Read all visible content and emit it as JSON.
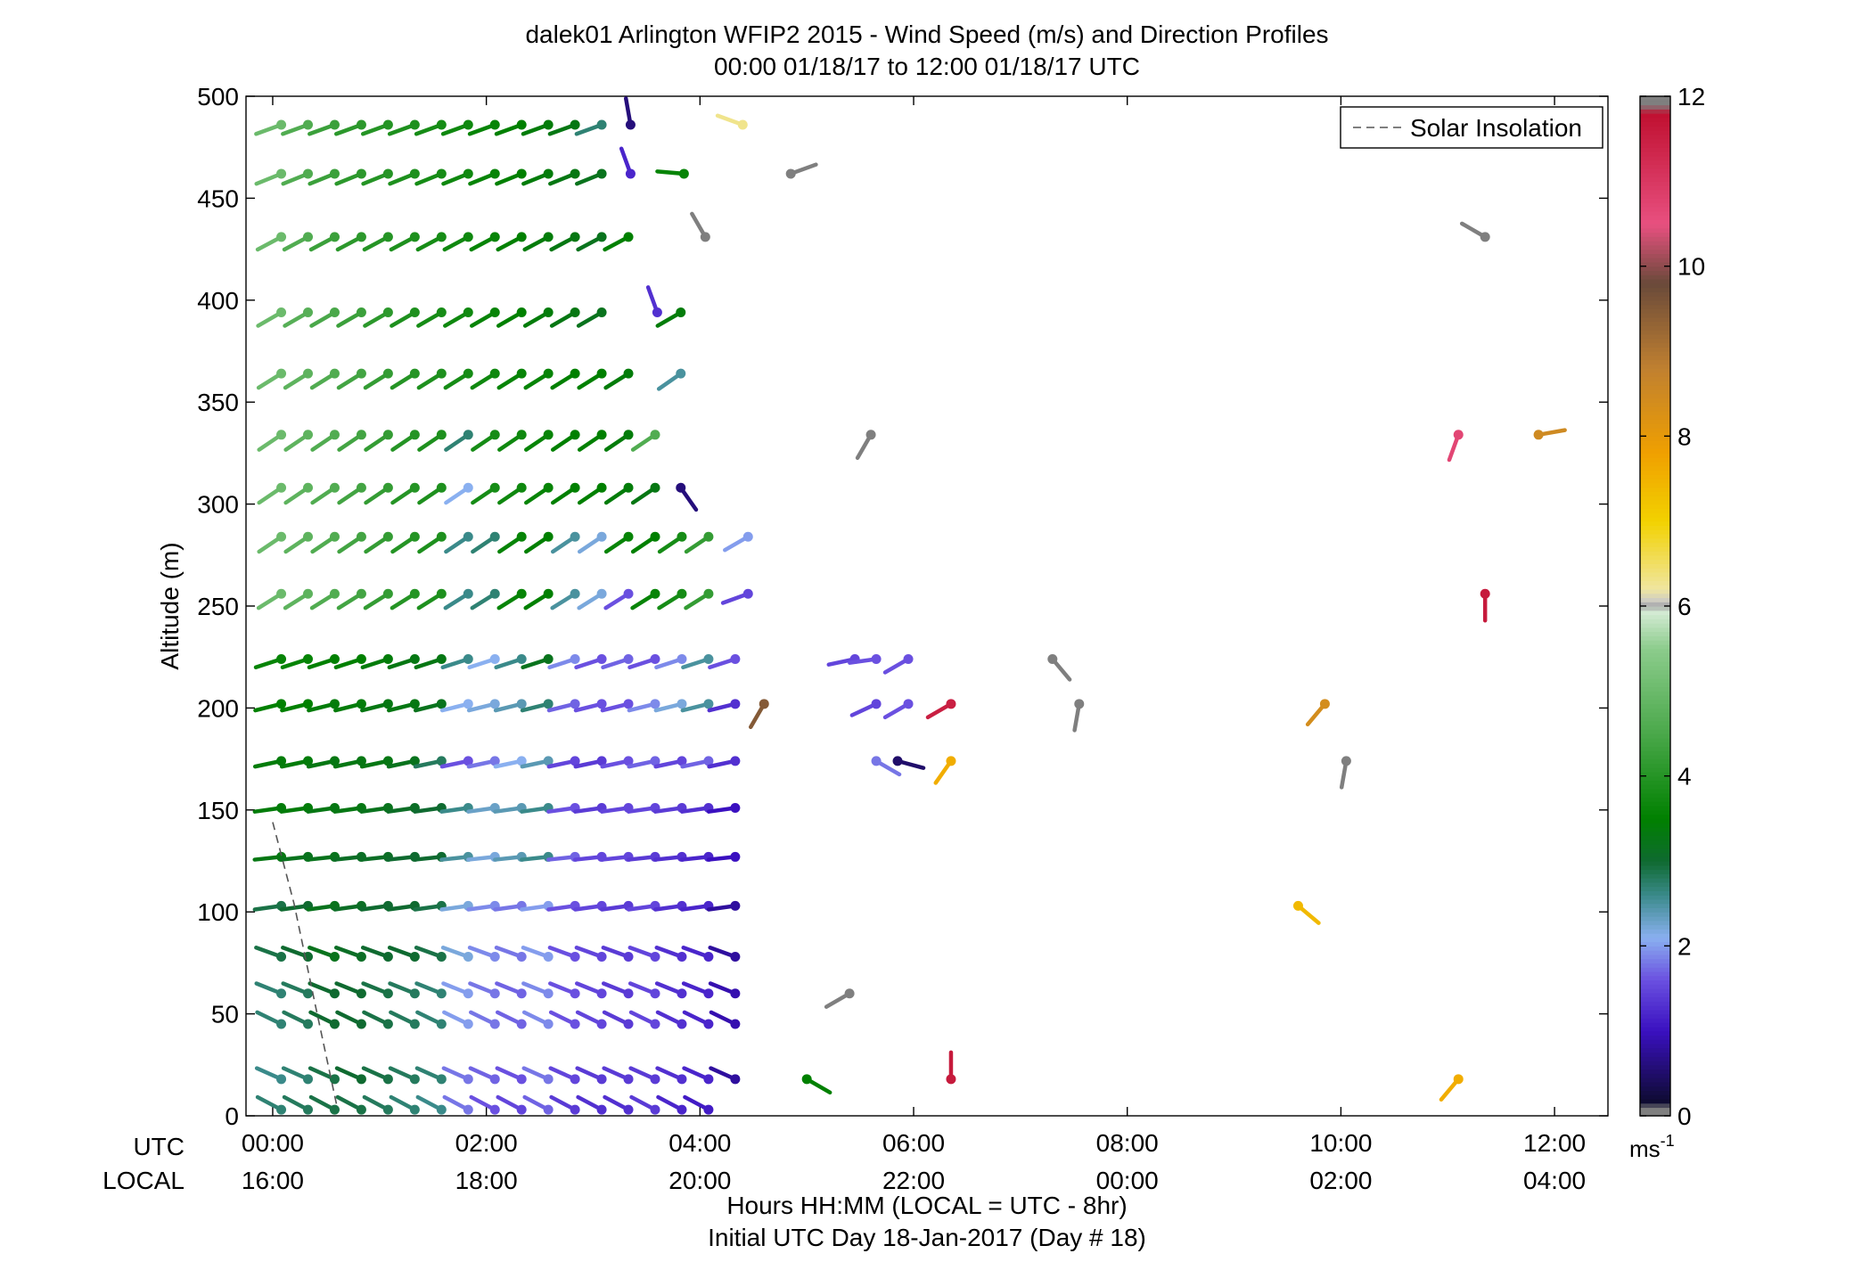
{
  "chart_data": {
    "type": "scatter",
    "title_line1": "dalek01 Arlington WFIP2 2015 - Wind Speed (m/s) and Direction Profiles",
    "title_line2": "00:00 01/18/17 to 12:00 01/18/17  UTC",
    "ylabel": "Altitude (m)",
    "xlabel_line1": "Hours HH:MM  (LOCAL = UTC - 8hr)",
    "xlabel_line2": "Initial UTC Day 18-Jan-2017 (Day # 18)",
    "row_label_utc": "UTC",
    "row_label_local": "LOCAL",
    "xlim": [
      -0.25,
      12.5
    ],
    "ylim": [
      0,
      500
    ],
    "x_ticks_utc": [
      "00:00",
      "02:00",
      "04:00",
      "06:00",
      "08:00",
      "10:00",
      "12:00"
    ],
    "x_ticks_local": [
      "16:00",
      "18:00",
      "20:00",
      "22:00",
      "00:00",
      "02:00",
      "04:00"
    ],
    "x_tick_hours": [
      0,
      2,
      4,
      6,
      8,
      10,
      12
    ],
    "y_ticks": [
      0,
      50,
      100,
      150,
      200,
      250,
      300,
      350,
      400,
      450,
      500
    ],
    "legend": {
      "entry": "Solar Insolation",
      "placement": "top-right"
    },
    "colorbar": {
      "range": [
        0,
        12
      ],
      "ticks": [
        0,
        2,
        4,
        6,
        8,
        10,
        12
      ],
      "unit_base": "ms",
      "unit_exp": "-1",
      "stops": [
        {
          "v": 0.0,
          "c": "#7f7f7f"
        },
        {
          "v": 0.1,
          "c": "#7f7f7f"
        },
        {
          "v": 0.15,
          "c": "#0d0b2e"
        },
        {
          "v": 1.0,
          "c": "#3a10c0"
        },
        {
          "v": 1.6,
          "c": "#6a50e0"
        },
        {
          "v": 2.1,
          "c": "#8ab0f0"
        },
        {
          "v": 2.6,
          "c": "#3a8a8a"
        },
        {
          "v": 3.0,
          "c": "#0f6a30"
        },
        {
          "v": 3.5,
          "c": "#008000"
        },
        {
          "v": 4.5,
          "c": "#4aa84a"
        },
        {
          "v": 5.5,
          "c": "#8ccc8c"
        },
        {
          "v": 5.95,
          "c": "#d7ecd7"
        },
        {
          "v": 6.0,
          "c": "#9a9a9a"
        },
        {
          "v": 6.05,
          "c": "#c8c8c8"
        },
        {
          "v": 6.2,
          "c": "#f0e6a0"
        },
        {
          "v": 7.0,
          "c": "#f2d200"
        },
        {
          "v": 7.8,
          "c": "#f0a000"
        },
        {
          "v": 8.8,
          "c": "#c08030"
        },
        {
          "v": 9.8,
          "c": "#6a4a3a"
        },
        {
          "v": 10.5,
          "c": "#e85080"
        },
        {
          "v": 11.8,
          "c": "#c01030"
        },
        {
          "v": 11.9,
          "c": "#7f7f7f"
        },
        {
          "v": 12.0,
          "c": "#7f7f7f"
        }
      ]
    },
    "barb_rows": [
      {
        "alt": 486,
        "d": 250,
        "start": 0.08,
        "n": 13,
        "s": [
          5.0,
          4.6,
          4.3,
          4.1,
          4.0,
          3.9,
          3.8,
          3.7,
          3.6,
          3.5,
          3.4,
          3.3,
          2.7
        ]
      },
      {
        "alt": 462,
        "d": 248,
        "start": 0.08,
        "n": 13,
        "s": [
          5.0,
          4.6,
          4.3,
          4.1,
          4.0,
          3.9,
          3.8,
          3.7,
          3.6,
          3.5,
          3.4,
          3.3,
          3.2
        ]
      },
      {
        "alt": 431,
        "d": 242,
        "start": 0.08,
        "n": 14,
        "s": [
          5.0,
          4.6,
          4.3,
          4.1,
          4.0,
          3.9,
          3.8,
          3.7,
          3.6,
          3.5,
          3.4,
          3.3,
          3.2,
          3.5
        ]
      },
      {
        "alt": 394,
        "d": 240,
        "start": 0.08,
        "n": 13,
        "s": [
          5.0,
          4.7,
          4.5,
          4.3,
          4.1,
          3.9,
          3.8,
          3.7,
          3.6,
          3.5,
          3.4,
          3.3,
          3.2
        ]
      },
      {
        "alt": 364,
        "d": 238,
        "start": 0.08,
        "n": 14,
        "s": [
          5.0,
          4.8,
          4.6,
          4.4,
          4.2,
          4.0,
          3.9,
          3.8,
          3.7,
          3.6,
          3.6,
          3.5,
          3.5,
          3.4
        ]
      },
      {
        "alt": 334,
        "d": 236,
        "start": 0.08,
        "n": 15,
        "s": [
          5.0,
          4.8,
          4.6,
          4.4,
          4.2,
          4.0,
          3.9,
          2.7,
          3.8,
          3.7,
          3.6,
          3.5,
          3.5,
          3.4,
          4.6
        ]
      },
      {
        "alt": 308,
        "d": 236,
        "start": 0.08,
        "n": 15,
        "s": [
          5.0,
          4.8,
          4.6,
          4.4,
          4.2,
          4.0,
          3.9,
          2.1,
          3.8,
          3.7,
          3.6,
          3.5,
          3.5,
          3.4,
          3.3
        ]
      },
      {
        "alt": 284,
        "d": 236,
        "start": 0.08,
        "n": 17,
        "s": [
          5.0,
          4.8,
          4.6,
          4.4,
          4.2,
          4.0,
          3.9,
          2.6,
          2.7,
          3.6,
          3.5,
          2.5,
          2.2,
          3.6,
          3.5,
          3.8,
          4.2
        ]
      },
      {
        "alt": 256,
        "d": 238,
        "start": 0.08,
        "n": 17,
        "s": [
          5.0,
          4.8,
          4.6,
          4.4,
          4.2,
          4.0,
          3.9,
          2.6,
          2.7,
          3.6,
          3.5,
          2.5,
          2.2,
          1.6,
          3.6,
          3.8,
          4.2
        ]
      },
      {
        "alt": 224,
        "d": 252,
        "start": 0.08,
        "n": 18,
        "s": [
          3.6,
          3.6,
          3.5,
          3.5,
          3.4,
          3.3,
          3.3,
          2.6,
          2.1,
          2.6,
          3.2,
          1.9,
          1.6,
          1.7,
          1.6,
          1.9,
          2.5,
          1.6
        ]
      },
      {
        "alt": 202,
        "d": 256,
        "start": 0.08,
        "n": 18,
        "s": [
          3.5,
          3.5,
          3.4,
          3.4,
          3.3,
          3.3,
          3.2,
          2.1,
          2.2,
          2.4,
          2.7,
          1.7,
          1.6,
          1.6,
          1.9,
          2.2,
          2.5,
          1.3
        ]
      },
      {
        "alt": 174,
        "d": 258,
        "start": 0.08,
        "n": 18,
        "s": [
          3.4,
          3.4,
          3.3,
          3.3,
          3.3,
          3.2,
          2.8,
          1.6,
          1.8,
          2.1,
          2.4,
          1.5,
          1.4,
          1.6,
          1.7,
          1.5,
          1.7,
          1.3
        ]
      },
      {
        "alt": 151,
        "d": 262,
        "start": 0.08,
        "n": 18,
        "s": [
          3.4,
          3.4,
          3.3,
          3.3,
          3.2,
          3.1,
          3.0,
          2.6,
          2.3,
          2.4,
          2.6,
          1.6,
          1.4,
          1.5,
          1.5,
          1.4,
          1.3,
          1.0
        ]
      },
      {
        "alt": 127,
        "d": 264,
        "start": 0.08,
        "n": 18,
        "s": [
          3.3,
          3.2,
          3.2,
          3.1,
          3.1,
          3.0,
          3.0,
          2.5,
          2.2,
          2.4,
          2.6,
          1.7,
          1.5,
          1.5,
          1.4,
          1.3,
          1.2,
          1.0
        ]
      },
      {
        "alt": 103,
        "d": 262,
        "start": 0.08,
        "n": 18,
        "s": [
          2.9,
          3.0,
          3.2,
          3.1,
          3.0,
          3.0,
          2.9,
          2.2,
          1.9,
          1.8,
          2.0,
          1.6,
          1.5,
          1.4,
          1.5,
          1.3,
          1.2,
          0.8
        ]
      },
      {
        "alt": 78,
        "d": 290,
        "start": 0.08,
        "n": 18,
        "s": [
          2.9,
          3.0,
          3.2,
          3.1,
          3.0,
          3.0,
          2.9,
          2.2,
          1.9,
          1.8,
          2.0,
          1.6,
          1.5,
          1.4,
          1.5,
          1.3,
          1.2,
          0.8
        ]
      },
      {
        "alt": 60,
        "d": 292,
        "start": 0.08,
        "n": 18,
        "s": [
          2.7,
          2.8,
          3.0,
          3.0,
          2.9,
          2.8,
          2.7,
          2.0,
          1.8,
          1.7,
          1.9,
          1.6,
          1.5,
          1.4,
          1.5,
          1.3,
          1.2,
          0.9
        ]
      },
      {
        "alt": 45,
        "d": 296,
        "start": 0.08,
        "n": 18,
        "s": [
          2.7,
          2.8,
          3.0,
          3.0,
          2.9,
          2.8,
          2.7,
          2.0,
          1.8,
          1.7,
          1.9,
          1.6,
          1.5,
          1.4,
          1.5,
          1.3,
          1.2,
          0.9
        ]
      },
      {
        "alt": 18,
        "d": 294,
        "start": 0.08,
        "n": 18,
        "s": [
          2.6,
          2.7,
          2.9,
          3.0,
          2.9,
          2.8,
          2.7,
          1.8,
          1.7,
          1.6,
          1.8,
          1.5,
          1.4,
          1.4,
          1.4,
          1.3,
          1.2,
          0.8
        ]
      },
      {
        "alt": 3,
        "d": 298,
        "start": 0.08,
        "n": 17,
        "s": [
          2.7,
          2.8,
          2.9,
          2.9,
          2.8,
          2.7,
          2.6,
          1.8,
          1.6,
          1.5,
          1.7,
          1.4,
          1.3,
          1.3,
          1.4,
          1.2,
          1.1
        ]
      }
    ],
    "barb_points": [
      {
        "t": 3.35,
        "alt": 486,
        "d": 350,
        "s": 0.6
      },
      {
        "t": 4.4,
        "alt": 486,
        "d": 290,
        "s": 6.3
      },
      {
        "t": 3.35,
        "alt": 462,
        "d": 340,
        "s": 1.2
      },
      {
        "t": 3.85,
        "alt": 462,
        "d": 275,
        "s": 3.6
      },
      {
        "t": 4.85,
        "alt": 462,
        "d": 70,
        "s": 0.0
      },
      {
        "t": 4.05,
        "alt": 431,
        "d": 330,
        "s": 0.0
      },
      {
        "t": 11.35,
        "alt": 431,
        "d": 300,
        "s": 0.0
      },
      {
        "t": 3.6,
        "alt": 394,
        "d": 340,
        "s": 1.3
      },
      {
        "t": 3.82,
        "alt": 394,
        "d": 240,
        "s": 3.4
      },
      {
        "t": 3.82,
        "alt": 364,
        "d": 235,
        "s": 2.5
      },
      {
        "t": 5.6,
        "alt": 334,
        "d": 210,
        "s": 0.0
      },
      {
        "t": 11.1,
        "alt": 334,
        "d": 200,
        "s": 10.7
      },
      {
        "t": 11.85,
        "alt": 334,
        "d": 80,
        "s": 8.5
      },
      {
        "t": 3.82,
        "alt": 308,
        "d": 145,
        "s": 0.6
      },
      {
        "t": 4.45,
        "alt": 284,
        "d": 240,
        "s": 2.0
      },
      {
        "t": 4.45,
        "alt": 256,
        "d": 250,
        "s": 1.5
      },
      {
        "t": 11.35,
        "alt": 256,
        "d": 180,
        "s": 11.6
      },
      {
        "t": 5.45,
        "alt": 224,
        "d": 258,
        "s": 1.5
      },
      {
        "t": 5.65,
        "alt": 224,
        "d": 262,
        "s": 1.6
      },
      {
        "t": 5.95,
        "alt": 224,
        "d": 240,
        "s": 1.6
      },
      {
        "t": 7.3,
        "alt": 224,
        "d": 140,
        "s": 0.0
      },
      {
        "t": 4.6,
        "alt": 202,
        "d": 210,
        "s": 9.5
      },
      {
        "t": 5.65,
        "alt": 202,
        "d": 245,
        "s": 1.5
      },
      {
        "t": 5.95,
        "alt": 202,
        "d": 240,
        "s": 1.6
      },
      {
        "t": 6.35,
        "alt": 202,
        "d": 240,
        "s": 11.5
      },
      {
        "t": 7.55,
        "alt": 202,
        "d": 190,
        "s": 0.0
      },
      {
        "t": 9.85,
        "alt": 202,
        "d": 220,
        "s": 8.4
      },
      {
        "t": 5.65,
        "alt": 174,
        "d": 120,
        "s": 1.8
      },
      {
        "t": 5.85,
        "alt": 174,
        "d": 105,
        "s": 0.5
      },
      {
        "t": 6.35,
        "alt": 174,
        "d": 215,
        "s": 7.6
      },
      {
        "t": 10.05,
        "alt": 174,
        "d": 190,
        "s": 0.0
      },
      {
        "t": 9.6,
        "alt": 103,
        "d": 130,
        "s": 7.4
      },
      {
        "t": 5.4,
        "alt": 60,
        "d": 240,
        "s": 0.0
      },
      {
        "t": 5.0,
        "alt": 18,
        "d": 120,
        "s": 3.5
      },
      {
        "t": 6.35,
        "alt": 18,
        "d": 0,
        "s": 11.6
      },
      {
        "t": 11.1,
        "alt": 18,
        "d": 220,
        "s": 7.6
      }
    ],
    "solar_insolation": [
      [
        0,
        144
      ],
      [
        0.2,
        104
      ],
      [
        0.4,
        54
      ],
      [
        0.6,
        5
      ]
    ]
  }
}
